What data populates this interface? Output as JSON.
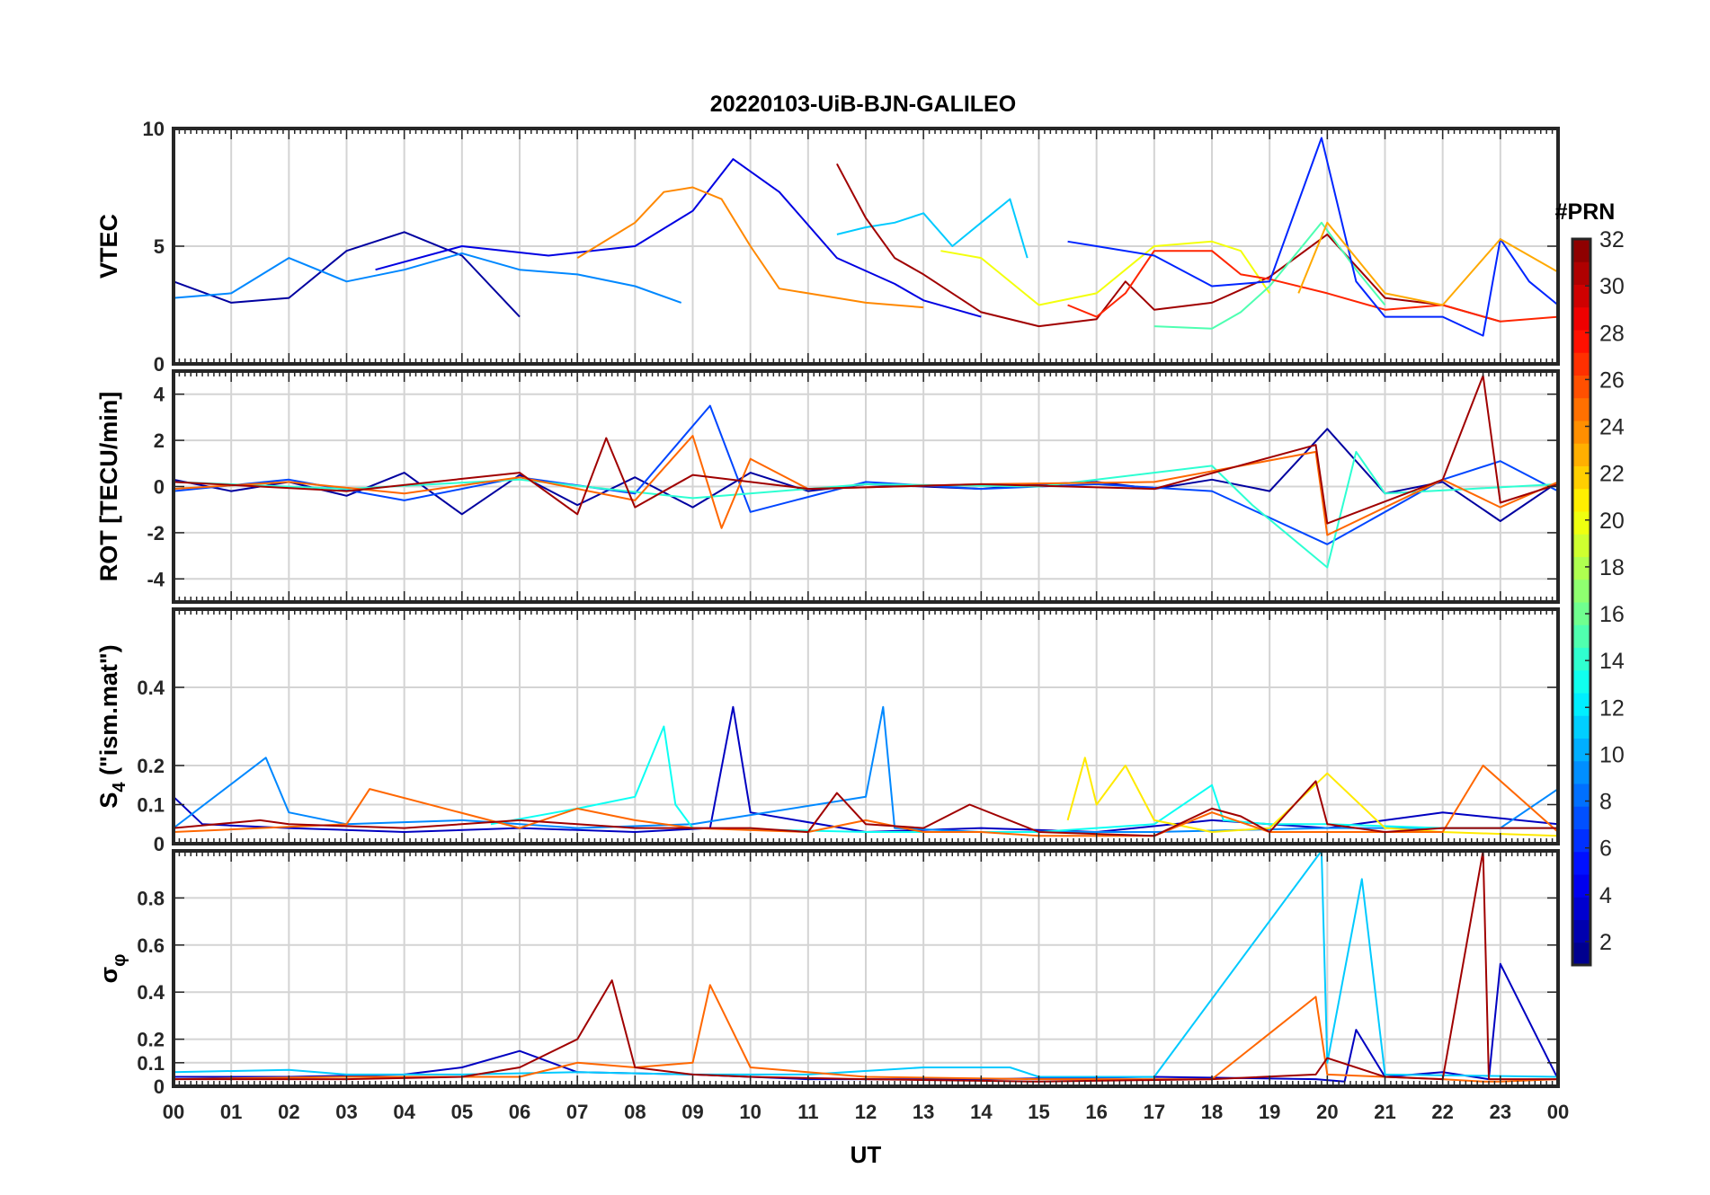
{
  "figure": {
    "title": "20220103-UiB-BJN-GALILEO",
    "xlabel": "UT"
  },
  "colorbar": {
    "label": "#PRN",
    "range": [
      1,
      32
    ],
    "ticks": [
      2,
      4,
      6,
      8,
      10,
      12,
      14,
      16,
      18,
      20,
      22,
      24,
      26,
      28,
      30,
      32
    ],
    "levels": 32
  },
  "chart_data": [
    {
      "type": "line",
      "panel": "vtec",
      "ylabel": "VTEC",
      "xlim": [
        0,
        24
      ],
      "ylim": [
        0,
        10
      ],
      "yticks": [
        0,
        5,
        10
      ],
      "xticks": [
        "00",
        "01",
        "02",
        "03",
        "04",
        "05",
        "06",
        "07",
        "08",
        "09",
        "10",
        "11",
        "12",
        "13",
        "14",
        "15",
        "16",
        "17",
        "18",
        "19",
        "20",
        "21",
        "22",
        "23",
        "00"
      ],
      "grid": true,
      "series": [
        {
          "prn": 2,
          "x": [
            0,
            1,
            2,
            3,
            4,
            5,
            6
          ],
          "y": [
            3.5,
            2.6,
            2.8,
            4.8,
            5.6,
            4.6,
            2.0
          ]
        },
        {
          "prn": 4,
          "x": [
            3.5,
            5,
            6.5,
            8,
            9,
            9.7,
            10.5,
            11.5,
            12.5,
            13,
            14
          ],
          "y": [
            4,
            5,
            4.6,
            5,
            6.5,
            8.7,
            7.3,
            4.5,
            3.4,
            2.7,
            2
          ]
        },
        {
          "prn": 9,
          "x": [
            0,
            1,
            2,
            3,
            4,
            5,
            6,
            7,
            8,
            8.8
          ],
          "y": [
            2.8,
            3,
            4.5,
            3.5,
            4,
            4.7,
            4,
            3.8,
            3.3,
            2.6
          ]
        },
        {
          "prn": 11,
          "x": [
            11.5,
            12,
            12.5,
            13,
            13.5,
            14,
            14.5,
            14.8
          ],
          "y": [
            5.5,
            5.8,
            6,
            6.4,
            5,
            6,
            7,
            4.5
          ]
        },
        {
          "prn": 24,
          "x": [
            7,
            8,
            8.5,
            9,
            9.5,
            10,
            10.5,
            11,
            12,
            13
          ],
          "y": [
            4.5,
            6,
            7.3,
            7.5,
            7,
            5,
            3.2,
            3,
            2.6,
            2.4
          ]
        },
        {
          "prn": 31,
          "x": [
            11.5,
            12,
            12.5,
            13,
            14,
            15,
            16,
            16.5,
            17,
            18,
            19,
            20,
            21,
            22,
            23
          ],
          "y": [
            8.5,
            6.2,
            4.5,
            3.8,
            2.2,
            1.6,
            1.9,
            3.5,
            2.3,
            2.6,
            3.7,
            5.5,
            2.8,
            2.5,
            1.8
          ]
        },
        {
          "prn": 20,
          "x": [
            13.3,
            14,
            15,
            16,
            17,
            18,
            18.5,
            19
          ],
          "y": [
            4.8,
            4.5,
            2.5,
            3,
            5,
            5.2,
            4.8,
            3
          ]
        },
        {
          "prn": 15,
          "x": [
            17,
            18,
            18.5,
            19,
            19.9,
            20.5,
            21
          ],
          "y": [
            1.6,
            1.5,
            2.2,
            3.3,
            6,
            4,
            2.5
          ]
        },
        {
          "prn": 27,
          "x": [
            15.5,
            16,
            16.5,
            17,
            18,
            18.5,
            19,
            20,
            21,
            22,
            23,
            24
          ],
          "y": [
            2.5,
            2,
            3,
            4.8,
            4.8,
            3.8,
            3.6,
            3,
            2.3,
            2.5,
            1.8,
            2
          ]
        },
        {
          "prn": 6,
          "x": [
            15.5,
            16,
            17,
            18,
            19,
            19.9,
            20.5,
            21,
            22,
            22.7,
            23,
            23.5,
            24
          ],
          "y": [
            5.2,
            5,
            4.6,
            3.3,
            3.5,
            9.6,
            3.5,
            2,
            2,
            1.2,
            5.3,
            3.5,
            2.5
          ]
        },
        {
          "prn": 23,
          "x": [
            19.5,
            20,
            21,
            22,
            23,
            24
          ],
          "y": [
            3,
            6,
            3,
            2.5,
            5.3,
            3.9
          ]
        }
      ]
    },
    {
      "type": "line",
      "panel": "rot",
      "ylabel": "ROT [TECU/min]",
      "xlim": [
        0,
        24
      ],
      "ylim": [
        -5,
        5
      ],
      "yticks": [
        -4,
        -2,
        0,
        2,
        4
      ],
      "grid": true,
      "series": [
        {
          "prn": 2,
          "x": [
            0,
            1,
            2,
            3,
            4,
            5,
            6,
            7,
            8,
            9,
            10,
            11,
            12,
            13,
            14,
            15,
            16,
            17,
            18,
            19,
            20,
            21,
            22,
            23,
            24
          ],
          "y": [
            0.3,
            -0.2,
            0.2,
            -0.4,
            0.6,
            -1.2,
            0.5,
            -0.8,
            0.4,
            -0.9,
            0.6,
            -0.2,
            0.1,
            0,
            -0.1,
            0.1,
            0.2,
            -0.1,
            0.3,
            -0.2,
            2.5,
            -0.3,
            0.2,
            -1.5,
            0.2
          ]
        },
        {
          "prn": 7,
          "x": [
            0,
            2,
            4,
            6,
            8,
            9.3,
            10,
            12,
            14,
            16,
            18,
            20,
            22,
            23,
            24
          ],
          "y": [
            -0.2,
            0.3,
            -0.6,
            0.4,
            -0.3,
            3.5,
            -1.1,
            0.2,
            -0.1,
            0.1,
            -0.2,
            -2.5,
            0.3,
            1.1,
            -0.2
          ]
        },
        {
          "prn": 14,
          "x": [
            0,
            3,
            6,
            9,
            12,
            15,
            18,
            18.7,
            20,
            20.5,
            21,
            24
          ],
          "y": [
            0.2,
            -0.1,
            0.3,
            -0.5,
            0.1,
            0,
            0.9,
            -0.8,
            -3.5,
            1.5,
            -0.3,
            0.1
          ]
        },
        {
          "prn": 25,
          "x": [
            0,
            2,
            4,
            6,
            8,
            9,
            9.5,
            10,
            11,
            14,
            17,
            19.8,
            20,
            22,
            23,
            24
          ],
          "y": [
            -0.1,
            0.2,
            -0.3,
            0.4,
            -0.6,
            2.2,
            -1.8,
            1.2,
            -0.1,
            0.1,
            0.2,
            1.5,
            -2.1,
            0.3,
            -0.9,
            0.2
          ]
        },
        {
          "prn": 31,
          "x": [
            0,
            3,
            6,
            7,
            7.5,
            8,
            9,
            11,
            14,
            17,
            19.8,
            20,
            22,
            22.7,
            23,
            24
          ],
          "y": [
            0.2,
            -0.2,
            0.6,
            -1.2,
            2.1,
            -0.9,
            0.5,
            -0.1,
            0.1,
            -0.1,
            1.8,
            -1.6,
            0.3,
            4.8,
            -0.7,
            0.1
          ]
        }
      ]
    },
    {
      "type": "line",
      "panel": "s4",
      "ylabel": "S",
      "ylabel_sub": "4",
      "ylabel_suffix": " (\"ism.mat\")",
      "xlim": [
        0,
        24
      ],
      "ylim": [
        0,
        0.6
      ],
      "yticks": [
        0,
        0.1,
        0.2,
        0.4
      ],
      "grid": true,
      "series": [
        {
          "prn": 3,
          "x": [
            0,
            0.5,
            2,
            4,
            6,
            8,
            9.3,
            9.7,
            10,
            12,
            14,
            16,
            18,
            20,
            22,
            24
          ],
          "y": [
            0.12,
            0.05,
            0.04,
            0.03,
            0.04,
            0.03,
            0.04,
            0.35,
            0.08,
            0.03,
            0.04,
            0.03,
            0.06,
            0.04,
            0.08,
            0.05
          ]
        },
        {
          "prn": 9,
          "x": [
            0,
            1.6,
            2,
            3,
            5,
            7,
            9,
            12,
            12.3,
            12.5,
            14,
            17,
            20,
            23,
            24
          ],
          "y": [
            0.04,
            0.22,
            0.08,
            0.05,
            0.06,
            0.04,
            0.05,
            0.12,
            0.35,
            0.04,
            0.03,
            0.03,
            0.04,
            0.04,
            0.14
          ]
        },
        {
          "prn": 13,
          "x": [
            5.5,
            7,
            8,
            8.5,
            8.7,
            9,
            12,
            15,
            17,
            18,
            18.2,
            19,
            20,
            22,
            24
          ],
          "y": [
            0.05,
            0.09,
            0.12,
            0.3,
            0.1,
            0.04,
            0.03,
            0.03,
            0.05,
            0.15,
            0.06,
            0.05,
            0.05,
            0.04,
            0.04
          ]
        },
        {
          "prn": 21,
          "x": [
            15.5,
            15.8,
            16,
            16.5,
            17,
            18,
            19,
            20,
            21,
            22,
            24
          ],
          "y": [
            0.06,
            0.22,
            0.1,
            0.2,
            0.06,
            0.03,
            0.04,
            0.18,
            0.04,
            0.03,
            0.02
          ]
        },
        {
          "prn": 25,
          "x": [
            0,
            3,
            3.4,
            6,
            7,
            8,
            8.5,
            9,
            11,
            12,
            13,
            14,
            15,
            17,
            18,
            19,
            21,
            22,
            22.7,
            24
          ],
          "y": [
            0.03,
            0.05,
            0.14,
            0.04,
            0.09,
            0.06,
            0.05,
            0.04,
            0.03,
            0.06,
            0.03,
            0.03,
            0.02,
            0.02,
            0.08,
            0.03,
            0.03,
            0.03,
            0.2,
            0.03
          ]
        },
        {
          "prn": 31,
          "x": [
            0,
            1.5,
            2,
            4,
            6,
            7,
            8,
            10,
            11,
            11.5,
            12,
            13,
            13.8,
            15,
            17,
            18,
            18.5,
            19,
            19.8,
            20,
            21,
            22,
            24
          ],
          "y": [
            0.04,
            0.06,
            0.05,
            0.04,
            0.06,
            0.05,
            0.04,
            0.04,
            0.03,
            0.13,
            0.05,
            0.04,
            0.1,
            0.03,
            0.02,
            0.09,
            0.07,
            0.03,
            0.16,
            0.05,
            0.03,
            0.04,
            0.04
          ]
        }
      ]
    },
    {
      "type": "line",
      "panel": "sigma-phi",
      "ylabel": "σ",
      "ylabel_sub": "φ",
      "xlim": [
        0,
        24
      ],
      "ylim": [
        0,
        1
      ],
      "yticks": [
        0,
        0.1,
        0.2,
        0.4,
        0.6,
        0.8
      ],
      "grid": true,
      "series": [
        {
          "prn": 3,
          "x": [
            0,
            2,
            4,
            5,
            6,
            7,
            9,
            11,
            14,
            17,
            19.8,
            20.3,
            20.5,
            21,
            22,
            22.8,
            23,
            24
          ],
          "y": [
            0.04,
            0.04,
            0.05,
            0.08,
            0.15,
            0.06,
            0.05,
            0.03,
            0.03,
            0.04,
            0.03,
            0.02,
            0.24,
            0.04,
            0.06,
            0.03,
            0.52,
            0.03
          ]
        },
        {
          "prn": 11,
          "x": [
            0,
            2,
            3,
            5,
            7,
            9,
            11,
            13,
            14.5,
            15,
            17,
            19.9,
            20,
            20.6,
            21,
            24
          ],
          "y": [
            0.06,
            0.07,
            0.05,
            0.05,
            0.06,
            0.05,
            0.05,
            0.08,
            0.08,
            0.04,
            0.04,
            1,
            0.1,
            0.88,
            0.05,
            0.04
          ]
        },
        {
          "prn": 25,
          "x": [
            0,
            3,
            6,
            7,
            8,
            9,
            9.3,
            10,
            12,
            15,
            18,
            19.8,
            20,
            22,
            22.7,
            23,
            24
          ],
          "y": [
            0.03,
            0.04,
            0.04,
            0.1,
            0.08,
            0.1,
            0.43,
            0.08,
            0.04,
            0.03,
            0.03,
            0.38,
            0.05,
            0.03,
            0.02,
            0.02,
            0.03
          ]
        },
        {
          "prn": 31,
          "x": [
            0,
            3,
            5,
            6,
            7,
            7.6,
            8,
            9,
            10,
            12,
            15,
            18,
            19.8,
            20,
            21,
            22,
            22.7,
            22.8,
            23,
            24
          ],
          "y": [
            0.03,
            0.03,
            0.04,
            0.08,
            0.2,
            0.45,
            0.08,
            0.05,
            0.04,
            0.03,
            0.02,
            0.03,
            0.05,
            0.12,
            0.04,
            0.03,
            1,
            0.03,
            0.03,
            0.03
          ]
        }
      ]
    }
  ]
}
